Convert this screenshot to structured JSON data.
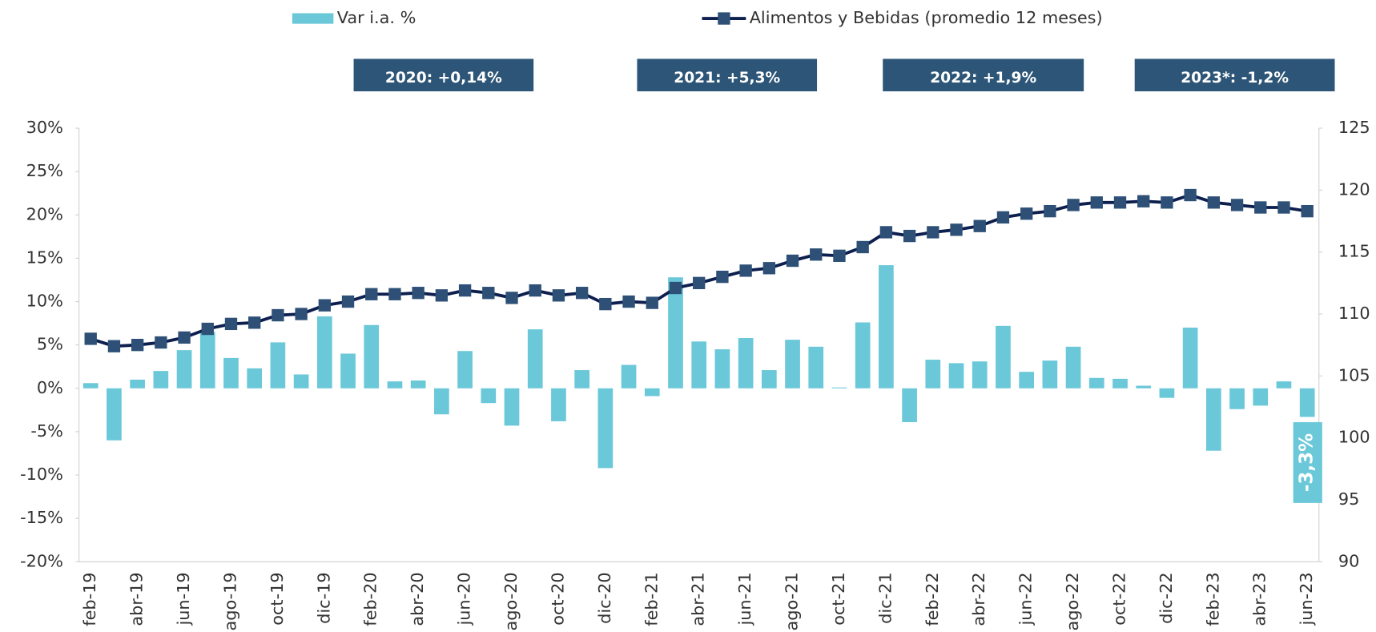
{
  "chart_data": {
    "type": "bar_line",
    "categories": [
      "feb-19",
      null,
      "abr-19",
      null,
      "jun-19",
      null,
      "ago-19",
      null,
      "oct-19",
      null,
      "dic-19",
      null,
      "feb-20",
      null,
      "abr-20",
      null,
      "jun-20",
      null,
      "ago-20",
      null,
      "oct-20",
      null,
      "dic-20",
      null,
      "feb-21",
      null,
      "abr-21",
      null,
      "jun-21",
      null,
      "ago-21",
      null,
      "oct-21",
      null,
      "dic-21",
      null,
      "feb-22",
      null,
      "abr-22",
      null,
      "jun-22",
      null,
      "ago-22",
      null,
      "oct-22",
      null,
      "dic-22",
      null,
      "feb-23",
      null,
      "abr-23",
      null,
      "jun-23"
    ],
    "series": [
      {
        "name": "Var i.a. %",
        "color": "#6ac8d9",
        "axis": "y",
        "values": [
          0.6,
          -6.0,
          1.0,
          2.0,
          4.4,
          6.5,
          3.5,
          2.3,
          5.3,
          1.6,
          8.3,
          4.0,
          7.3,
          0.8,
          0.9,
          -3.0,
          4.3,
          -1.7,
          -4.3,
          6.8,
          -3.8,
          2.1,
          -9.2,
          2.7,
          -0.9,
          12.8,
          5.4,
          4.5,
          5.8,
          2.1,
          5.6,
          4.8,
          0.1,
          7.6,
          14.2,
          -3.9,
          3.3,
          2.9,
          3.1,
          7.2,
          1.9,
          3.2,
          4.8,
          1.2,
          1.1,
          0.3,
          -1.1,
          7.0,
          -7.2,
          -2.4,
          -2.0,
          0.8,
          -3.3
        ],
        "value_labels": [
          null,
          null,
          null,
          null,
          null,
          null,
          null,
          null,
          null,
          null,
          null,
          null,
          null,
          null,
          null,
          null,
          null,
          null,
          null,
          null,
          null,
          null,
          null,
          null,
          null,
          null,
          null,
          null,
          null,
          null,
          null,
          null,
          null,
          null,
          null,
          null,
          null,
          null,
          null,
          null,
          null,
          null,
          null,
          null,
          null,
          null,
          null,
          null,
          null,
          null,
          null,
          null,
          "-3,3%"
        ]
      },
      {
        "name": "Alimentos y Bebidas (promedio 12 meses)",
        "color": "#0d1f4f",
        "marker_color": "#2e5077",
        "axis": "y2",
        "values": [
          108.0,
          107.4,
          107.5,
          107.7,
          108.1,
          108.8,
          109.2,
          109.3,
          109.9,
          110.0,
          110.7,
          111.0,
          111.6,
          111.6,
          111.7,
          111.5,
          111.9,
          111.7,
          111.3,
          111.9,
          111.5,
          111.7,
          110.8,
          111.0,
          110.9,
          112.1,
          112.5,
          113.0,
          113.5,
          113.7,
          114.3,
          114.8,
          114.7,
          115.4,
          116.6,
          116.3,
          116.6,
          116.8,
          117.1,
          117.8,
          118.1,
          118.3,
          118.8,
          119.0,
          119.0,
          119.1,
          119.0,
          119.6,
          119.0,
          118.8,
          118.6,
          118.6,
          118.3
        ]
      }
    ],
    "ylim": [
      -20,
      30
    ],
    "yticks": [
      {
        "value": -20,
        "label": "-20%"
      },
      {
        "value": -15,
        "label": "-15%"
      },
      {
        "value": -10,
        "label": "-10%"
      },
      {
        "value": -5,
        "label": "-5%"
      },
      {
        "value": 0,
        "label": "0%"
      },
      {
        "value": 5,
        "label": "5%"
      },
      {
        "value": 10,
        "label": "10%"
      },
      {
        "value": 15,
        "label": "15%"
      },
      {
        "value": 20,
        "label": "20%"
      },
      {
        "value": 25,
        "label": "25%"
      },
      {
        "value": 30,
        "label": "30%"
      }
    ],
    "y2lim": [
      90,
      125
    ],
    "y2ticks": [
      90,
      95,
      100,
      105,
      110,
      115,
      120,
      125
    ],
    "annotations": [
      "2020: +0,14%",
      "2021: +5,3%",
      "2022: +1,9%",
      "2023*: -1,2%"
    ],
    "annotation_color": "#2d5577",
    "legend": "top",
    "grid": false
  }
}
